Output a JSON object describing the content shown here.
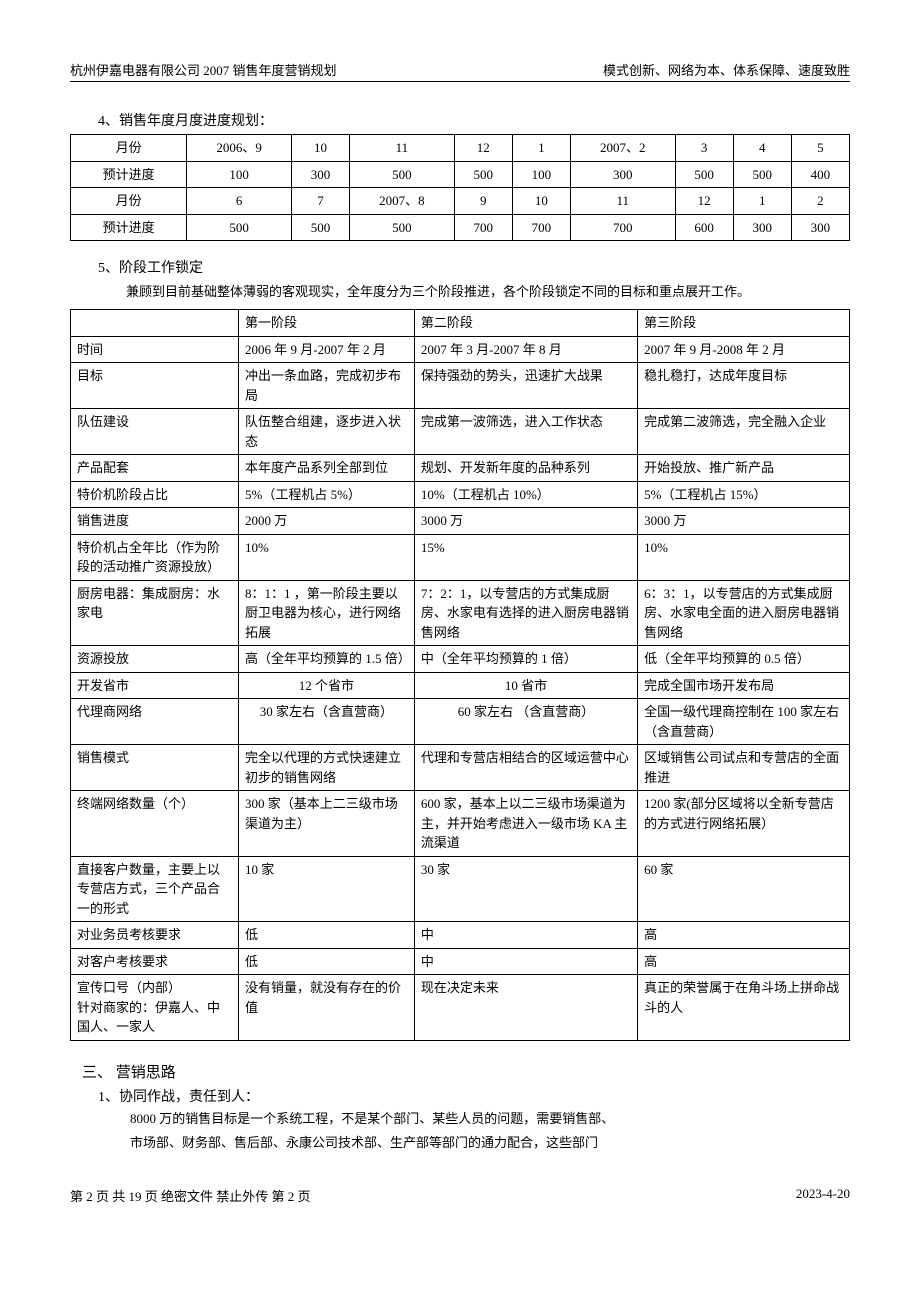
{
  "header": {
    "left": "杭州伊嘉电器有限公司 2007 销售年度营销规划",
    "right": "模式创新、网络为本、体系保障、速度致胜"
  },
  "section4": {
    "title": "4、销售年度月度进度规划：",
    "rows": [
      [
        "月份",
        "2006、9",
        "10",
        "11",
        "12",
        "1",
        "2007、2",
        "3",
        "4",
        "5"
      ],
      [
        "预计进度",
        "100",
        "300",
        "500",
        "500",
        "100",
        "300",
        "500",
        "500",
        "400"
      ],
      [
        "月份",
        "6",
        "7",
        "2007、8",
        "9",
        "10",
        "11",
        "12",
        "1",
        "2"
      ],
      [
        "预计进度",
        "500",
        "500",
        "500",
        "700",
        "700",
        "700",
        "600",
        "300",
        "300"
      ]
    ]
  },
  "section5": {
    "title": "5、阶段工作锁定",
    "intro": "兼顾到目前基础整体薄弱的客观现实，全年度分为三个阶段推进，各个阶段锁定不同的目标和重点展开工作。",
    "cols": [
      "",
      "第一阶段",
      "第二阶段",
      "第三阶段"
    ],
    "rows": [
      [
        "时间",
        "2006 年 9 月-2007 年 2 月",
        "2007 年 3 月-2007 年 8 月",
        "2007 年 9 月-2008 年 2 月"
      ],
      [
        "目标",
        "冲出一条血路，完成初步布局",
        "保持强劲的势头，迅速扩大战果",
        "稳扎稳打，达成年度目标"
      ],
      [
        "队伍建设",
        "队伍整合组建，逐步进入状态",
        "完成第一波筛选，进入工作状态",
        "完成第二波筛选，完全融入企业"
      ],
      [
        "产品配套",
        "本年度产品系列全部到位",
        "规划、开发新年度的品种系列",
        "开始投放、推广新产品"
      ],
      [
        "特价机阶段占比",
        "5%（工程机占 5%）",
        "10%（工程机占 10%）",
        "5%（工程机占 15%）"
      ],
      [
        "销售进度",
        "2000 万",
        "3000 万",
        "3000 万"
      ],
      [
        "特价机占全年比（作为阶段的活动推广资源投放）",
        "10%",
        "15%",
        "10%"
      ],
      [
        "厨房电器：集成厨房：水家电",
        "8：1：1 ，第一阶段主要以厨卫电器为核心，进行网络拓展",
        "7：2：1，以专营店的方式集成厨房、水家电有选择的进入厨房电器销售网络",
        "6：3：1，以专营店的方式集成厨房、水家电全面的进入厨房电器销售网络"
      ],
      [
        "资源投放",
        "高（全年平均预算的 1.5 倍）",
        "中（全年平均预算的 1 倍）",
        "低（全年平均预算的 0.5 倍）"
      ],
      [
        "开发省市",
        "12 个省市",
        "10 省市",
        "完成全国市场开发布局"
      ],
      [
        "代理商网络",
        "30 家左右（含直营商）",
        "60 家左右  （含直营商）",
        "全国一级代理商控制在 100 家左右（含直营商）"
      ],
      [
        "销售模式",
        "完全以代理的方式快速建立初步的销售网络",
        "代理和专营店相结合的区域运营中心",
        "区域销售公司试点和专营店的全面推进"
      ],
      [
        "终端网络数量（个）",
        "300 家（基本上二三级市场渠道为主）",
        "600 家，基本上以二三级市场渠道为主，并开始考虑进入一级市场 KA 主流渠道",
        "1200 家(部分区域将以全新专营店的方式进行网络拓展）"
      ],
      [
        "直接客户数量，主要上以专营店方式，三个产品合一的形式",
        "10 家",
        "30 家",
        "60 家"
      ],
      [
        "对业务员考核要求",
        "低",
        "中",
        "高"
      ],
      [
        "对客户考核要求",
        "低",
        "中",
        "高"
      ],
      [
        "宣传口号（内部）\n针对商家的：伊嘉人、中国人、一家人",
        "没有销量，就没有存在的价值",
        "现在决定未来",
        "真正的荣誉属于在角斗场上拼命战斗的人"
      ]
    ]
  },
  "section_san": {
    "title": "三、 营销思路",
    "sub1_title": "1、协同作战，责任到人：",
    "sub1_body1": "8000 万的销售目标是一个系统工程，不是某个部门、某些人员的问题，需要销售部、",
    "sub1_body2": "市场部、财务部、售后部、永康公司技术部、生产部等部门的通力配合，这些部门"
  },
  "footer": {
    "left": "第 2 页 共 19 页    绝密文件  禁止外传       第 2 页",
    "right": "2023-4-20"
  }
}
